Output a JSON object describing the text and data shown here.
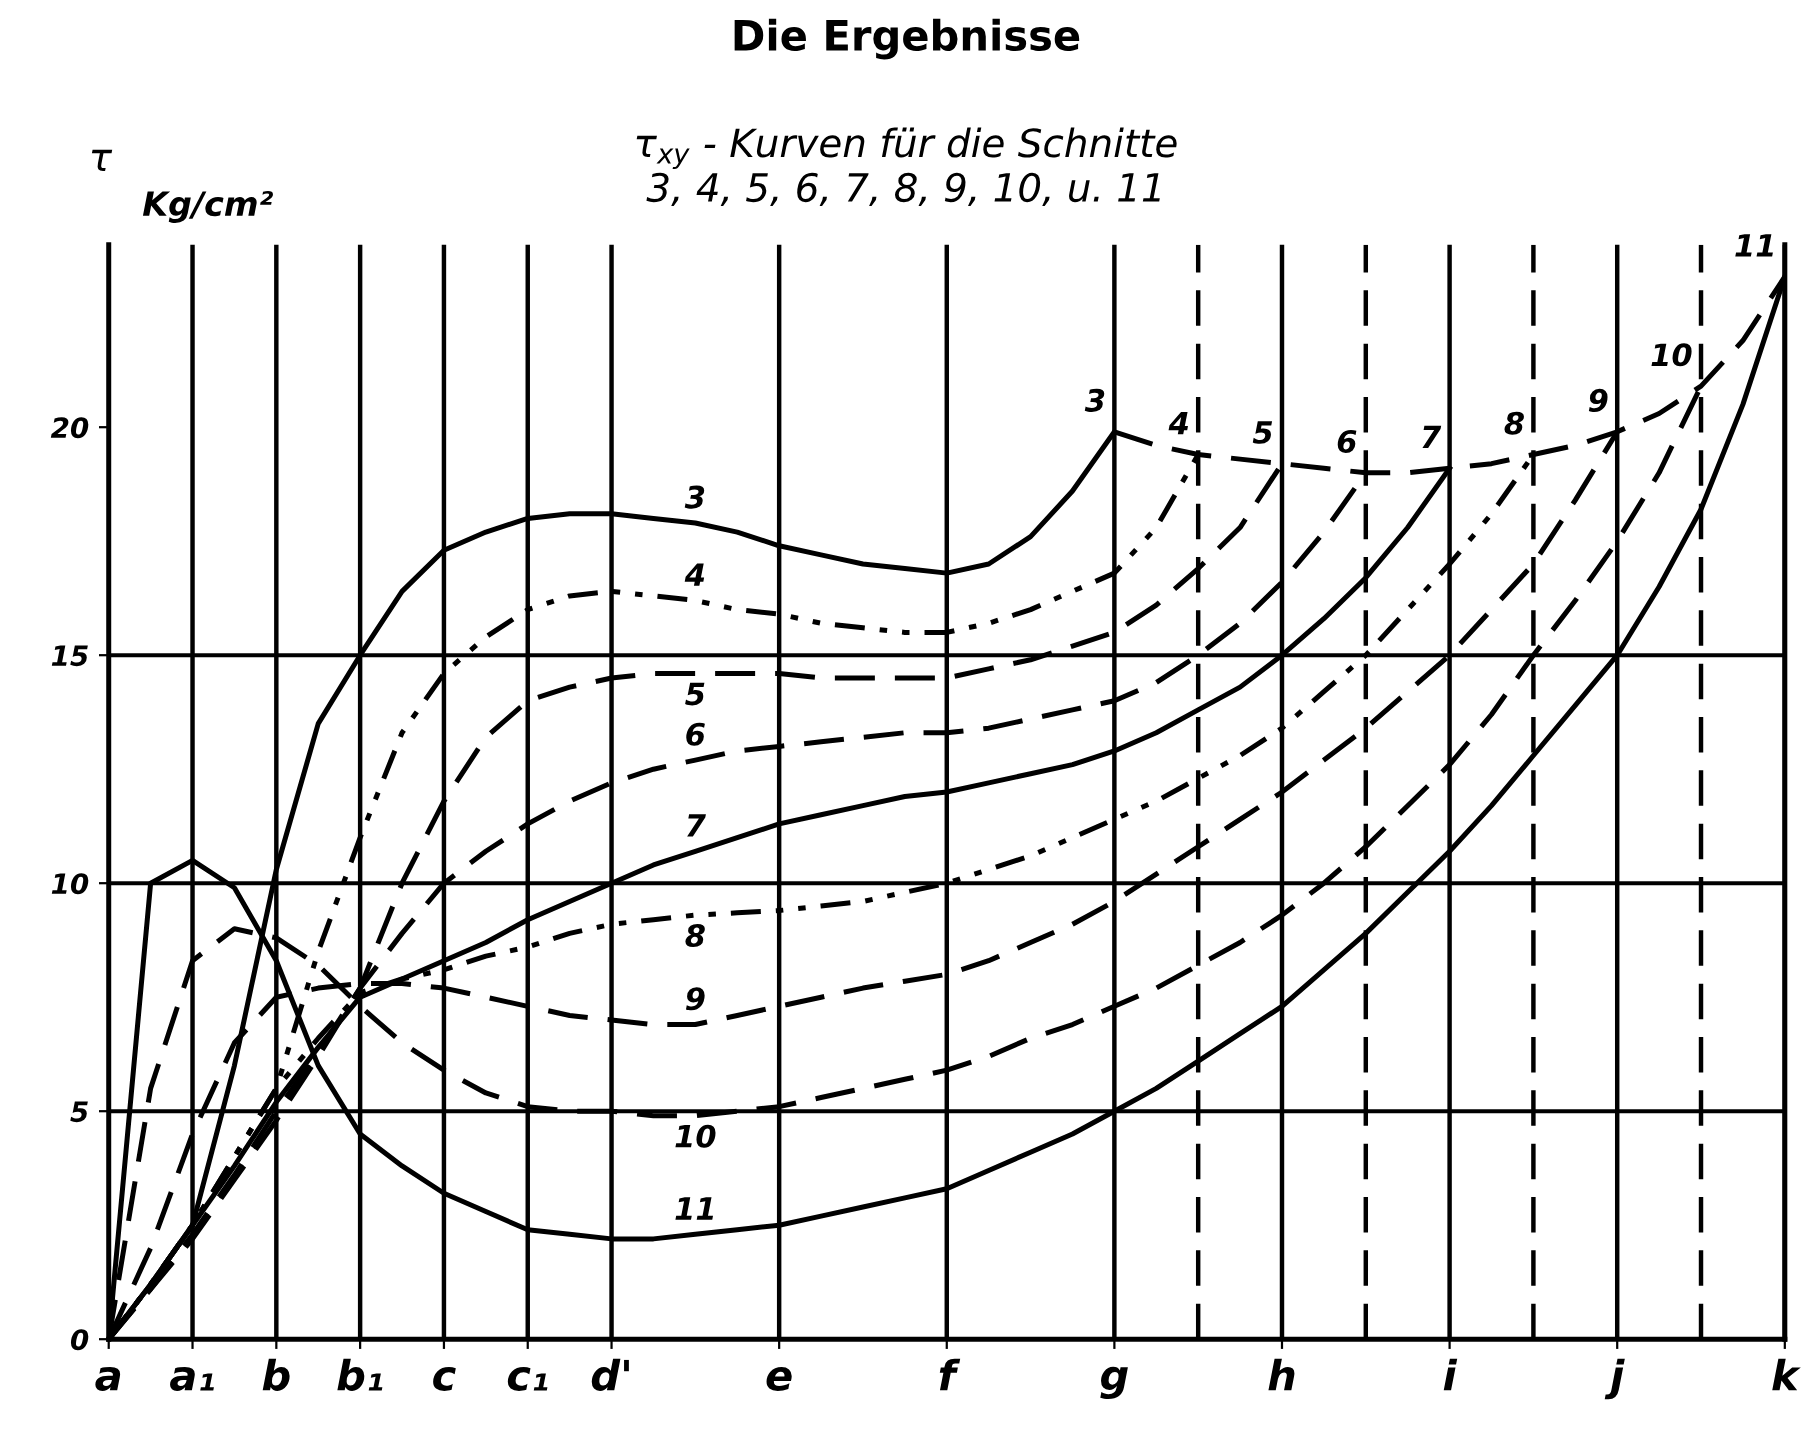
{
  "chart_data": {
    "type": "line",
    "title": "Die Ergebnisse",
    "subtitle": "τ$_{xy}$ - Kurven für die Schnitte\n3, 4, 5, 6, 7, 8, 9, 10, u. 11",
    "ylabel": "τ",
    "annotations": [
      "Kg/cm²"
    ],
    "categories": [
      "a",
      null,
      "a₁",
      null,
      "b",
      null,
      "b₁",
      null,
      "c",
      null,
      "c₁",
      null,
      "d'",
      null,
      null,
      null,
      "e",
      null,
      null,
      null,
      "f",
      null,
      null,
      null,
      "g",
      null,
      null,
      null,
      "h",
      null,
      null,
      null,
      "i",
      null,
      null,
      null,
      "j",
      null,
      null,
      null,
      "k"
    ],
    "ylim": [
      0,
      24
    ],
    "yticks": [
      0,
      5,
      10,
      15,
      20
    ],
    "grid": "x",
    "legend": false,
    "marker": "none",
    "ref_lines": [
      {
        "axis": "y",
        "value": 5,
        "label": null
      },
      {
        "axis": "y",
        "value": 10,
        "label": null
      },
      {
        "axis": "y",
        "value": 15,
        "label": null
      }
    ],
    "series": [
      {
        "name": "3",
        "color": "#000000",
        "line_style": "solid",
        "values": [
          0,
          1.2,
          2.5,
          6.0,
          10.3,
          13.5,
          15.0,
          16.4,
          17.3,
          17.7,
          18.0,
          18.1,
          18.1,
          18.0,
          17.9,
          17.7,
          17.4,
          17.2,
          17.0,
          16.9,
          16.8,
          17.0,
          17.6,
          18.6,
          19.9,
          null,
          null,
          null,
          null,
          null,
          null,
          null,
          null,
          null,
          null,
          null,
          null,
          null,
          null,
          null,
          null
        ]
      },
      {
        "name": "4",
        "color": "#000000",
        "line_style": "dotted",
        "values": [
          0,
          1.2,
          2.5,
          4,
          5.5,
          8.5,
          11.0,
          13.3,
          14.6,
          15.4,
          16.0,
          16.3,
          16.4,
          16.3,
          16.2,
          16.0,
          15.9,
          15.7,
          15.6,
          15.5,
          15.5,
          15.7,
          16.0,
          16.4,
          16.8,
          17.8,
          19.4,
          null,
          null,
          null,
          null,
          null,
          null,
          null,
          null,
          null,
          null,
          null,
          null,
          null,
          null
        ]
      },
      {
        "name": "5",
        "color": "#000000",
        "line_style": "dashed",
        "values": [
          0,
          1.1,
          2.3,
          3.6,
          5,
          6.3,
          7.7,
          10,
          11.8,
          13.2,
          14.0,
          14.3,
          14.5,
          14.6,
          14.6,
          14.6,
          14.6,
          14.5,
          14.5,
          14.5,
          14.5,
          14.7,
          14.9,
          15.2,
          15.5,
          16.1,
          16.9,
          17.8,
          19.2,
          null,
          null,
          null,
          null,
          null,
          null,
          null,
          null,
          null,
          null,
          null,
          null
        ]
      },
      {
        "name": "6",
        "color": "#000000",
        "line_style": "dashed",
        "values": [
          0,
          1.1,
          2.2,
          3.5,
          4.8,
          6.2,
          7.7,
          8.9,
          10,
          10.7,
          11.3,
          11.8,
          12.2,
          12.5,
          12.7,
          12.9,
          13.0,
          13.1,
          13.2,
          13.3,
          13.3,
          13.4,
          13.6,
          13.8,
          14.0,
          14.4,
          15.0,
          15.7,
          16.6,
          17.7,
          19.0,
          null,
          null,
          null,
          null,
          null,
          null,
          null,
          null,
          null,
          null
        ]
      },
      {
        "name": "7",
        "color": "#000000",
        "line_style": "solid",
        "values": [
          0,
          1.2,
          2.5,
          3.8,
          5.2,
          6.4,
          7.5,
          7.9,
          8.3,
          8.7,
          9.2,
          9.6,
          10,
          10.4,
          10.7,
          11.0,
          11.3,
          11.5,
          11.7,
          11.9,
          12.0,
          12.2,
          12.4,
          12.6,
          12.9,
          13.3,
          13.8,
          14.3,
          15.0,
          15.8,
          16.7,
          17.8,
          19.1,
          null,
          null,
          null,
          null,
          null,
          null,
          null,
          null
        ]
      },
      {
        "name": "8",
        "color": "#000000",
        "line_style": "dotted",
        "values": [
          0,
          1.2,
          2.5,
          4,
          5.5,
          6.6,
          7.6,
          7.9,
          8.1,
          8.4,
          8.6,
          8.9,
          9.1,
          9.2,
          9.3,
          9.35,
          9.4,
          9.5,
          9.6,
          9.8,
          10.0,
          10.3,
          10.6,
          11.0,
          11.4,
          11.8,
          12.3,
          12.8,
          13.4,
          14.2,
          15.0,
          16.0,
          17.0,
          18.1,
          19.4,
          null,
          null,
          null,
          null,
          null,
          null
        ]
      },
      {
        "name": "9",
        "color": "#000000",
        "line_style": "dashed",
        "values": [
          0,
          2.0,
          4.5,
          6.5,
          7.5,
          7.7,
          7.8,
          7.8,
          7.7,
          7.5,
          7.3,
          7.1,
          7.0,
          6.9,
          6.9,
          7.1,
          7.3,
          7.5,
          7.7,
          7.85,
          8.0,
          8.3,
          8.7,
          9.1,
          9.6,
          10.2,
          10.8,
          11.4,
          12.0,
          12.7,
          13.4,
          14.2,
          15.0,
          16.0,
          17.0,
          18.4,
          19.9,
          null,
          null,
          null,
          null
        ]
      },
      {
        "name": "10",
        "color": "#000000",
        "line_style": "dashed",
        "values": [
          0,
          5.5,
          8.3,
          9.0,
          8.8,
          8.2,
          7.3,
          6.5,
          5.9,
          5.4,
          5.1,
          5.0,
          5.0,
          4.9,
          4.9,
          5.0,
          5.1,
          5.3,
          5.5,
          5.7,
          5.9,
          6.2,
          6.6,
          6.9,
          7.3,
          7.7,
          8.2,
          8.7,
          9.3,
          10.0,
          10.8,
          11.7,
          12.6,
          13.7,
          15.0,
          16.2,
          17.5,
          19.0,
          20.9,
          null,
          null
        ]
      },
      {
        "name": "11",
        "color": "#000000",
        "line_style": "solid",
        "values": [
          0,
          10.0,
          10.5,
          9.9,
          8.3,
          6.0,
          4.5,
          3.8,
          3.2,
          2.8,
          2.4,
          2.3,
          2.2,
          2.2,
          2.3,
          2.4,
          2.5,
          2.7,
          2.9,
          3.1,
          3.3,
          3.7,
          4.1,
          4.5,
          5.0,
          5.5,
          6.1,
          6.7,
          7.3,
          8.1,
          8.9,
          9.8,
          10.7,
          11.7,
          12.8,
          13.9,
          15.0,
          16.5,
          18.2,
          20.5,
          23.3
        ]
      },
      {
        "color": "#000000",
        "line_style": "dashed",
        "values": [
          null,
          null,
          null,
          null,
          null,
          null,
          null,
          null,
          null,
          null,
          null,
          null,
          null,
          null,
          null,
          null,
          null,
          null,
          null,
          null,
          null,
          null,
          null,
          null,
          19.9,
          19.6,
          19.4,
          19.3,
          19.2,
          19.1,
          19.0,
          19.0,
          19.1,
          19.2,
          19.4,
          19.6,
          19.9,
          20.3,
          20.9,
          21.9,
          23.3
        ]
      }
    ]
  }
}
